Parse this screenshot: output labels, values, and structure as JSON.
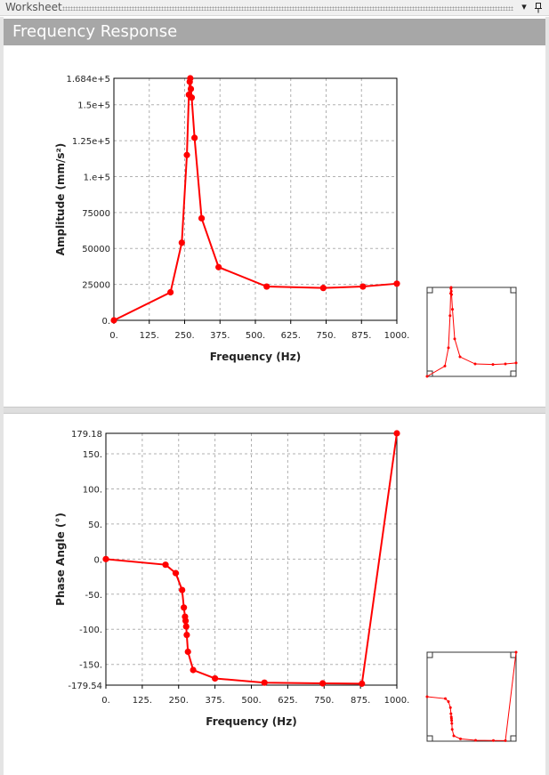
{
  "window": {
    "title": "Worksheet",
    "dropdown_glyph": "▾",
    "pin_glyph": "📌"
  },
  "header": {
    "title": "Frequency Response"
  },
  "colors": {
    "series": "#ff0000",
    "header_bg": "#a7a7a7",
    "grid": "#b0b0b0"
  },
  "chart_data": [
    {
      "type": "line",
      "title": "",
      "xlabel": "Frequency (Hz)",
      "ylabel": "Amplitude (mm/s²)",
      "xlim": [
        0,
        1000
      ],
      "ylim": [
        0,
        168400
      ],
      "xticks": [
        0,
        125,
        250,
        375,
        500,
        625,
        750,
        875,
        1000
      ],
      "xtick_labels": [
        "0.",
        "125.",
        "250.",
        "375.",
        "500.",
        "625.",
        "750.",
        "875.",
        "1000."
      ],
      "yticks": [
        0,
        25000,
        50000,
        75000,
        100000,
        125000,
        150000,
        168400
      ],
      "ytick_labels": [
        "0.",
        "25000",
        "50000",
        "75000",
        "1.e+5",
        "1.25e+5",
        "1.5e+5",
        "1.684e+5"
      ],
      "grid": true,
      "series": [
        {
          "x": [
            0,
            200,
            240,
            258,
            265,
            268,
            270,
            272,
            275,
            285,
            310,
            370,
            540,
            740,
            880,
            1000
          ],
          "y": [
            0,
            19500,
            54000,
            115000,
            157000,
            166000,
            168400,
            161000,
            155000,
            127000,
            71000,
            37000,
            23500,
            22500,
            23500,
            25500
          ]
        }
      ]
    },
    {
      "type": "line",
      "title": "",
      "xlabel": "Frequency (Hz)",
      "ylabel": "Phase Angle (°)",
      "xlim": [
        0,
        1000
      ],
      "ylim": [
        -179.54,
        179.18
      ],
      "xticks": [
        0,
        125,
        250,
        375,
        500,
        625,
        750,
        875,
        1000
      ],
      "xtick_labels": [
        "0.",
        "125.",
        "250.",
        "375.",
        "500.",
        "625.",
        "750.",
        "875.",
        "1000."
      ],
      "yticks": [
        -179.54,
        -150,
        -100,
        -50,
        0,
        50,
        100,
        150,
        179.18
      ],
      "ytick_labels": [
        "-179.54",
        "-150.",
        "-100.",
        "-50.",
        "0.",
        "50.",
        "100.",
        "150.",
        "179.18"
      ],
      "grid": true,
      "series": [
        {
          "x": [
            0,
            205,
            240,
            262,
            268,
            272,
            274,
            276,
            278,
            282,
            300,
            375,
            545,
            745,
            880,
            1000
          ],
          "y": [
            0,
            -8,
            -20,
            -44,
            -69,
            -82,
            -88,
            -96,
            -108,
            -132,
            -158,
            -170,
            -176,
            -177,
            -177.5,
            179.18
          ]
        }
      ]
    }
  ]
}
